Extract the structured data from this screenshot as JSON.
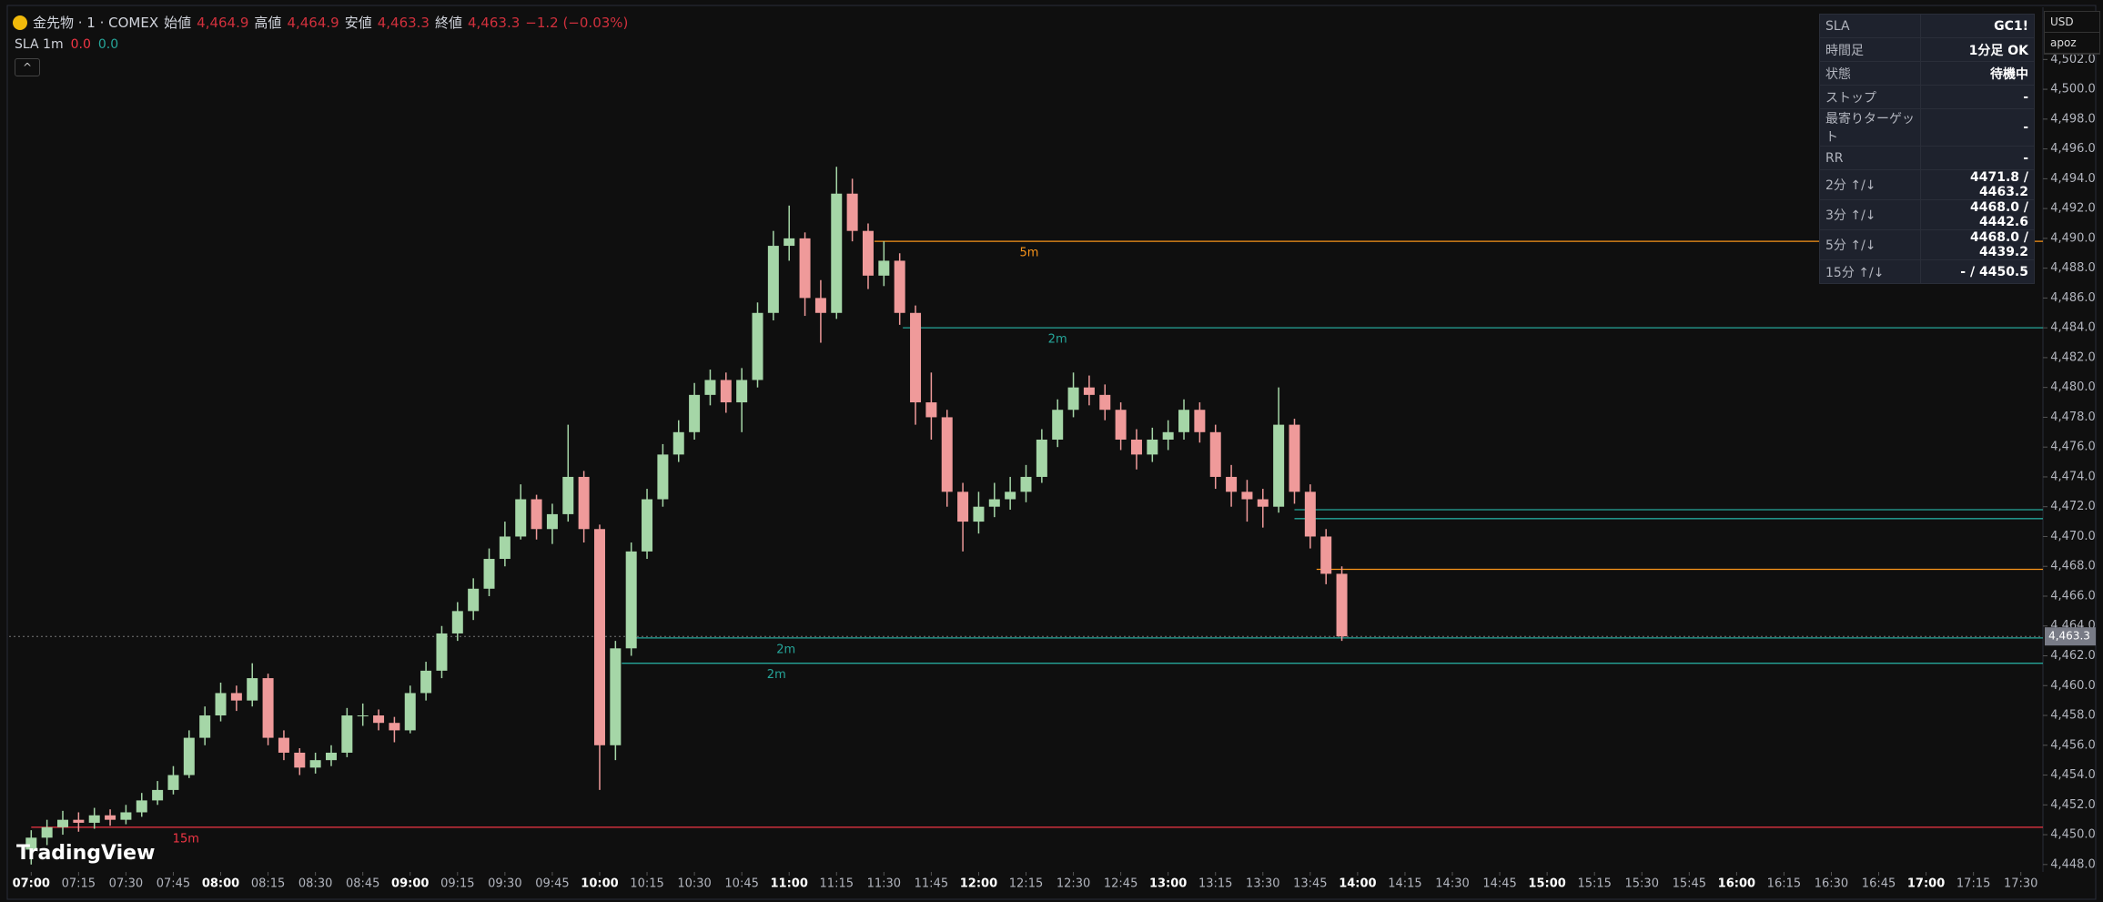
{
  "header": {
    "symbol": "金先物 · 1 · COMEX",
    "open_label": "始値",
    "open": "4,464.9",
    "high_label": "高値",
    "high": "4,464.9",
    "low_label": "安値",
    "low": "4,463.3",
    "close_label": "終値",
    "close": "4,463.3",
    "change": "−1.2 (−0.03%)"
  },
  "indicator": {
    "name": "SLA 1m",
    "v1": "0.0",
    "v2": "0.0"
  },
  "currency": "USD",
  "account": "apoz",
  "logo": "TradingView",
  "table": {
    "rows": [
      [
        "SLA",
        "GC1!"
      ],
      [
        "時間足",
        "1分足 OK"
      ],
      [
        "状態",
        "待機中"
      ],
      [
        "ストップ",
        "-"
      ],
      [
        "最寄りターゲット",
        "-"
      ],
      [
        "RR",
        "-"
      ],
      [
        "2分 ↑/↓",
        "4471.8 / 4463.2"
      ],
      [
        "3分 ↑/↓",
        "4468.0 / 4442.6"
      ],
      [
        "5分 ↑/↓",
        "4468.0 / 4439.2"
      ],
      [
        "15分 ↑/↓",
        "- / 4450.5"
      ]
    ]
  },
  "chart_data": {
    "type": "candlestick",
    "up_color": "#a5d6a7",
    "down_color": "#ef9a9a",
    "x": [
      "07:00",
      "07:05",
      "07:10",
      "07:15",
      "07:20",
      "07:25",
      "07:30",
      "07:35",
      "07:40",
      "07:45",
      "07:50",
      "07:55",
      "08:00",
      "08:05",
      "08:10",
      "08:15",
      "08:20",
      "08:25",
      "08:30",
      "08:35",
      "08:40",
      "08:45",
      "08:50",
      "08:55",
      "09:00",
      "09:05",
      "09:10",
      "09:15",
      "09:20",
      "09:25",
      "09:30",
      "09:35",
      "09:40",
      "09:45",
      "09:50",
      "09:55",
      "10:00",
      "10:05",
      "10:10",
      "10:15",
      "10:20",
      "10:25",
      "10:30",
      "10:35",
      "10:40",
      "10:45",
      "10:50",
      "10:55",
      "11:00",
      "11:05",
      "11:10",
      "11:15",
      "11:20",
      "11:25",
      "11:30",
      "11:35",
      "11:40",
      "11:45",
      "11:50",
      "11:55",
      "12:00",
      "12:05",
      "12:10",
      "12:15",
      "12:20",
      "12:25",
      "12:30",
      "12:35",
      "12:40",
      "12:45",
      "12:50",
      "12:55",
      "13:00",
      "13:05",
      "13:10",
      "13:15",
      "13:20",
      "13:25",
      "13:30",
      "13:35",
      "13:40",
      "13:45",
      "13:50",
      "13:55"
    ],
    "open": [
      4449.0,
      4449.8,
      4450.5,
      4451.0,
      4450.8,
      4451.3,
      4451.0,
      4451.5,
      4452.3,
      4453.0,
      4454.0,
      4456.5,
      4458.0,
      4459.5,
      4459.0,
      4460.5,
      4456.5,
      4455.5,
      4454.5,
      4455.0,
      4455.5,
      4458.0,
      4458.0,
      4457.5,
      4457.0,
      4459.5,
      4461.0,
      4463.5,
      4465.0,
      4466.5,
      4468.5,
      4470.0,
      4472.5,
      4470.5,
      4471.5,
      4474.0,
      4470.5,
      4456.0,
      4462.5,
      4469.0,
      4472.5,
      4475.5,
      4477.0,
      4479.5,
      4480.5,
      4479.0,
      4480.5,
      4485.0,
      4489.5,
      4490.0,
      4486.0,
      4485.0,
      4493.0,
      4490.5,
      4487.5,
      4488.5,
      4485.0,
      4479.0,
      4478.0,
      4473.0,
      4471.0,
      4472.0,
      4472.5,
      4473.0,
      4474.0,
      4476.5,
      4478.5,
      4480.0,
      4479.5,
      4478.5,
      4476.5,
      4475.5,
      4476.5,
      4477.0,
      4478.5,
      4477.0,
      4474.0,
      4473.0,
      4472.5,
      4472.0,
      4477.5,
      4473.0,
      4470.0,
      4467.5
    ],
    "high": [
      4450.3,
      4451.0,
      4451.6,
      4451.5,
      4451.8,
      4451.7,
      4452.0,
      4452.8,
      4453.6,
      4454.6,
      4457.0,
      4458.6,
      4460.2,
      4460.0,
      4461.5,
      4460.8,
      4457.0,
      4455.8,
      4455.5,
      4456.0,
      4458.5,
      4458.8,
      4458.4,
      4457.9,
      4460.0,
      4461.6,
      4464.0,
      4465.6,
      4467.2,
      4469.2,
      4471.0,
      4473.5,
      4472.8,
      4472.2,
      4477.5,
      4474.4,
      4470.8,
      4463.0,
      4469.6,
      4473.2,
      4476.2,
      4477.8,
      4480.3,
      4481.2,
      4481.0,
      4481.3,
      4485.7,
      4490.5,
      4492.2,
      4490.4,
      4487.2,
      4494.8,
      4494.0,
      4491.0,
      4489.8,
      4489.0,
      4485.5,
      4481.0,
      4478.5,
      4473.6,
      4473.0,
      4473.6,
      4474.0,
      4474.8,
      4477.2,
      4479.2,
      4481.0,
      4480.8,
      4480.2,
      4479.0,
      4477.2,
      4477.3,
      4477.8,
      4479.2,
      4479.0,
      4477.5,
      4474.8,
      4473.8,
      4473.2,
      4480.0,
      4477.9,
      4473.5,
      4470.5,
      4468.0
    ],
    "low": [
      4448.0,
      4449.3,
      4450.0,
      4450.2,
      4450.4,
      4450.6,
      4450.7,
      4451.2,
      4452.0,
      4452.7,
      4453.8,
      4456.0,
      4457.6,
      4458.3,
      4458.6,
      4456.0,
      4455.0,
      4454.0,
      4454.1,
      4454.6,
      4455.2,
      4457.3,
      4457.0,
      4456.2,
      4456.8,
      4459.0,
      4460.5,
      4463.0,
      4464.4,
      4466.0,
      4468.0,
      4469.8,
      4469.8,
      4469.5,
      4471.0,
      4469.6,
      4453.0,
      4455.0,
      4462.0,
      4468.5,
      4472.0,
      4475.0,
      4476.5,
      4478.8,
      4478.3,
      4477.0,
      4480.0,
      4484.5,
      4488.5,
      4484.8,
      4483.0,
      4484.6,
      4489.8,
      4486.6,
      4486.8,
      4484.2,
      4477.5,
      4476.5,
      4472.0,
      4469.0,
      4470.2,
      4471.3,
      4471.8,
      4472.3,
      4473.6,
      4476.0,
      4478.0,
      4478.8,
      4477.8,
      4475.8,
      4474.5,
      4475.0,
      4475.8,
      4476.5,
      4476.3,
      4473.2,
      4472.0,
      4471.0,
      4470.6,
      4471.6,
      4472.2,
      4469.2,
      4466.8,
      4463.0
    ],
    "close": [
      4449.8,
      4450.5,
      4451.0,
      4450.8,
      4451.3,
      4451.0,
      4451.5,
      4452.3,
      4453.0,
      4454.0,
      4456.5,
      4458.0,
      4459.5,
      4459.0,
      4460.5,
      4456.5,
      4455.5,
      4454.5,
      4455.0,
      4455.5,
      4458.0,
      4458.0,
      4457.5,
      4457.0,
      4459.5,
      4461.0,
      4463.5,
      4465.0,
      4466.5,
      4468.5,
      4470.0,
      4472.5,
      4470.5,
      4471.5,
      4474.0,
      4470.5,
      4456.0,
      4462.5,
      4469.0,
      4472.5,
      4475.5,
      4477.0,
      4479.5,
      4480.5,
      4479.0,
      4480.5,
      4485.0,
      4489.5,
      4490.0,
      4486.0,
      4485.0,
      4493.0,
      4490.5,
      4487.5,
      4488.5,
      4485.0,
      4479.0,
      4478.0,
      4473.0,
      4471.0,
      4472.0,
      4472.5,
      4473.0,
      4474.0,
      4476.5,
      4478.5,
      4480.0,
      4479.5,
      4478.5,
      4476.5,
      4475.5,
      4476.5,
      4477.0,
      4478.5,
      4477.0,
      4474.0,
      4473.0,
      4472.5,
      4472.0,
      4477.5,
      4473.0,
      4470.0,
      4467.5,
      4463.3
    ],
    "levels": [
      {
        "name": "5m",
        "price": 4489.8,
        "start": "11:27",
        "color": "#f7931a"
      },
      {
        "name": "2m",
        "price": 4484.0,
        "start": "11:36",
        "color": "#26a69a"
      },
      {
        "price": 4471.8,
        "start": "13:40",
        "color": "#26a69a"
      },
      {
        "price": 4471.2,
        "start": "13:40",
        "color": "#26a69a"
      },
      {
        "price": 4467.8,
        "start": "13:47",
        "color": "#f7931a"
      },
      {
        "name": "2m",
        "price": 4463.2,
        "start": "10:10",
        "color": "#26a69a"
      },
      {
        "name": "2m",
        "price": 4461.5,
        "start": "10:07",
        "color": "#26a69a"
      },
      {
        "name": "15m",
        "price": 4450.5,
        "start": "07:00",
        "color": "#f23645"
      }
    ],
    "last_price": {
      "value": 4463.3,
      "label": "4,463.3"
    },
    "xlim": [
      "06:53",
      "17:37"
    ],
    "ylim": [
      4447.5,
      4505.5
    ],
    "xticks": [
      "07:00",
      "07:15",
      "07:30",
      "07:45",
      "08:00",
      "08:15",
      "08:30",
      "08:45",
      "09:00",
      "09:15",
      "09:30",
      "09:45",
      "10:00",
      "10:15",
      "10:30",
      "10:45",
      "11:00",
      "11:15",
      "11:30",
      "11:45",
      "12:00",
      "12:15",
      "12:30",
      "12:45",
      "13:00",
      "13:15",
      "13:30",
      "13:45",
      "14:00",
      "14:15",
      "14:30",
      "14:45",
      "15:00",
      "15:15",
      "15:30",
      "15:45",
      "16:00",
      "16:15",
      "16:30",
      "16:45",
      "17:00",
      "17:15",
      "17:30"
    ],
    "yticks": [
      {
        "value": 4448,
        "label": "4,448.0"
      },
      {
        "value": 4450,
        "label": "4,450.0"
      },
      {
        "value": 4452,
        "label": "4,452.0"
      },
      {
        "value": 4454,
        "label": "4,454.0"
      },
      {
        "value": 4456,
        "label": "4,456.0"
      },
      {
        "value": 4458,
        "label": "4,458.0"
      },
      {
        "value": 4460,
        "label": "4,460.0"
      },
      {
        "value": 4462,
        "label": "4,462.0"
      },
      {
        "value": 4464,
        "label": "4,464.0"
      },
      {
        "value": 4466,
        "label": "4,466.0"
      },
      {
        "value": 4468,
        "label": "4,468.0"
      },
      {
        "value": 4470,
        "label": "4,470.0"
      },
      {
        "value": 4472,
        "label": "4,472.0"
      },
      {
        "value": 4474,
        "label": "4,474.0"
      },
      {
        "value": 4476,
        "label": "4,476.0"
      },
      {
        "value": 4478,
        "label": "4,478.0"
      },
      {
        "value": 4480,
        "label": "4,480.0"
      },
      {
        "value": 4482,
        "label": "4,482.0"
      },
      {
        "value": 4484,
        "label": "4,484.0"
      },
      {
        "value": 4486,
        "label": "4,486.0"
      },
      {
        "value": 4488,
        "label": "4,488.0"
      },
      {
        "value": 4490,
        "label": "4,490.0"
      },
      {
        "value": 4492,
        "label": "4,492.0"
      },
      {
        "value": 4494,
        "label": "4,494.0"
      },
      {
        "value": 4496,
        "label": "4,496.0"
      },
      {
        "value": 4498,
        "label": "4,498.0"
      },
      {
        "value": 4500,
        "label": "4,500.0"
      },
      {
        "value": 4502,
        "label": "4,502.0"
      }
    ]
  }
}
